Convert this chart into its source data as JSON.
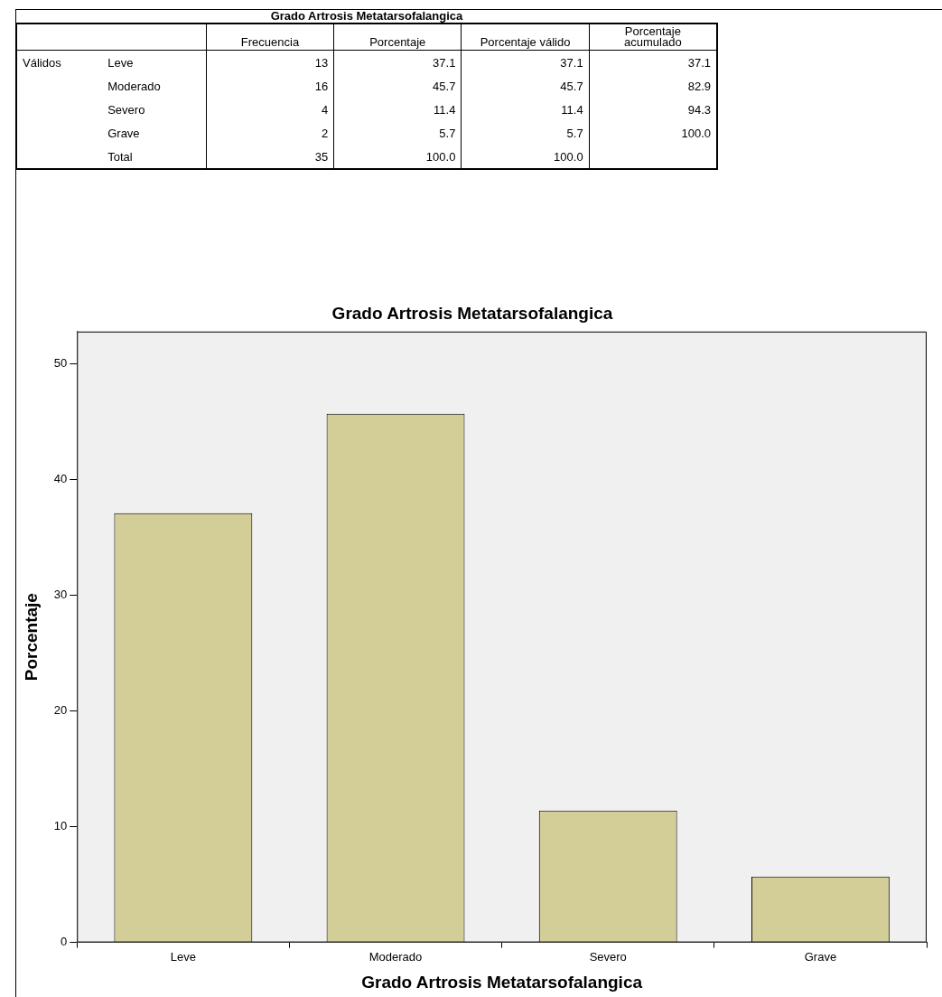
{
  "chart_data": [
    {
      "type": "heatmap",
      "data_labels": true,
      "title": "Grado Artrosis Metatarsofalangica",
      "categories": [
        "Frecuencia",
        "Porcentaje",
        "Porcentaje válido",
        "Porcentaje acumulado"
      ],
      "y_categories": [
        "Leve",
        "Moderado",
        "Severo",
        "Grave",
        "Total"
      ],
      "annotations": [
        "Válidos"
      ],
      "cells": [
        [
          13,
          37.1,
          37.1,
          37.1
        ],
        [
          16,
          45.7,
          45.7,
          82.9
        ],
        [
          4,
          11.4,
          11.4,
          94.3
        ],
        [
          2,
          5.7,
          5.7,
          100
        ],
        [
          35,
          100,
          100,
          null
        ]
      ],
      "cell_labels": [
        [
          "13",
          "37.1",
          "37.1",
          "37.1"
        ],
        [
          "16",
          "45.7",
          "45.7",
          "82.9"
        ],
        [
          "4",
          "11.4",
          "11.4",
          "94.3"
        ],
        [
          "2",
          "5.7",
          "5.7",
          "100.0"
        ],
        [
          "35",
          "100.0",
          "100.0",
          null
        ]
      ]
    },
    {
      "type": "bar",
      "title": "Grado Artrosis Metatarsofalangica",
      "xlabel": "Grado Artrosis Metatarsofalangica",
      "ylabel": "Porcentaje",
      "categories": [
        "Leve",
        "Moderado",
        "Severo",
        "Grave"
      ],
      "values": [
        37.1,
        45.7,
        11.4,
        5.7
      ],
      "color": "#d3ce97",
      "ylim": [
        0,
        52.8
      ],
      "yticks": [
        0,
        10,
        20,
        30,
        40,
        50
      ],
      "grid": false,
      "legend": false
    }
  ]
}
